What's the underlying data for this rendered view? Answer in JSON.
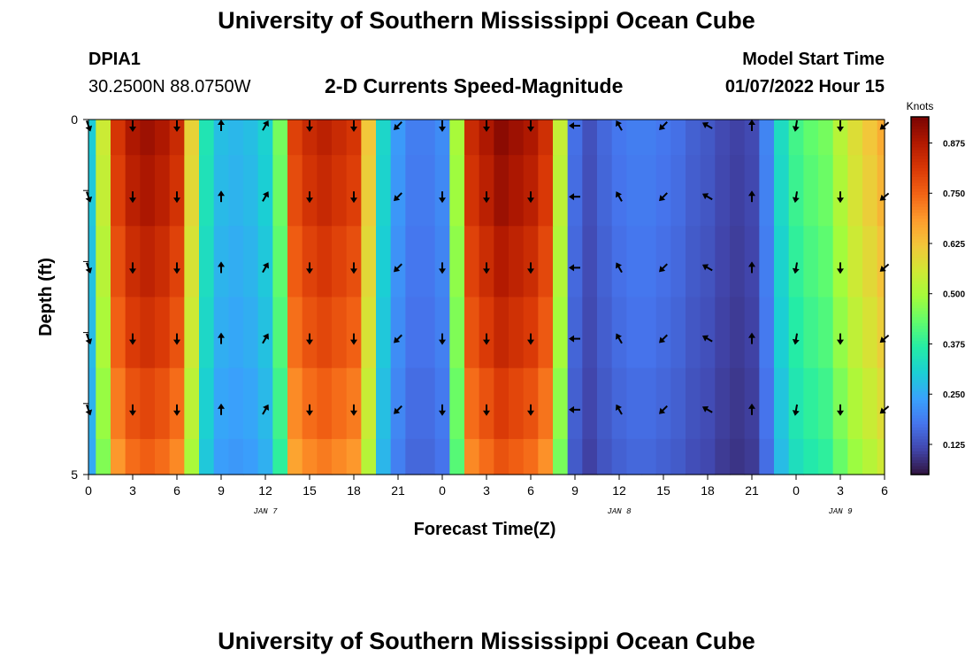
{
  "page": {
    "title": "University of Southern Mississippi Ocean Cube",
    "station_id": "DPIA1",
    "station_coords": "30.2500N  88.0750W",
    "plot_title": "2-D Currents Speed-Magnitude",
    "model_start_label": "Model Start Time",
    "model_start_value": "01/07/2022 Hour 15",
    "bottom_title": "University of Southern Mississippi Ocean Cube"
  },
  "chart_data": {
    "type": "heatmap",
    "title": "2-D Currents Speed-Magnitude",
    "xlabel": "Forecast Time(Z)",
    "ylabel": "Depth (ft)",
    "x_tick_labels": [
      "0",
      "3",
      "6",
      "9",
      "12",
      "15",
      "18",
      "21",
      "0",
      "3",
      "6",
      "9",
      "12",
      "15",
      "18",
      "21",
      "0",
      "3",
      "6"
    ],
    "x_range_hours": [
      0,
      54
    ],
    "date_labels": [
      {
        "text": "JAN 7",
        "hour": 12
      },
      {
        "text": "JAN 8",
        "hour": 36
      },
      {
        "text": "JAN 9",
        "hour": 51
      }
    ],
    "y_tick_labels": [
      "0",
      "5"
    ],
    "ylim": [
      0,
      5
    ],
    "depth_levels_ft": [
      0,
      1,
      2,
      3,
      4,
      5
    ],
    "colorbar": {
      "units": "Knots",
      "vmin": 0.05,
      "vmax": 0.94,
      "tick_values": [
        "0.125",
        "0.250",
        "0.375",
        "0.500",
        "0.625",
        "0.750",
        "0.875"
      ],
      "colors": [
        "#30123b",
        "#4145ab",
        "#4675ed",
        "#39a2fc",
        "#1bcfd4",
        "#24eca6",
        "#61fc6c",
        "#a4fc3b",
        "#d1e834",
        "#f3c63a",
        "#fe9b2d",
        "#f36315",
        "#d93806",
        "#b11901",
        "#7a0403"
      ]
    },
    "time_hours": [
      0,
      1,
      2,
      3,
      4,
      5,
      6,
      7,
      8,
      9,
      10,
      11,
      12,
      13,
      14,
      15,
      16,
      17,
      18,
      19,
      20,
      21,
      22,
      23,
      24,
      25,
      26,
      27,
      28,
      29,
      30,
      31,
      32,
      33,
      34,
      35,
      36,
      37,
      38,
      39,
      40,
      41,
      42,
      43,
      44,
      45,
      46,
      47,
      48,
      49,
      50,
      51,
      52,
      53,
      54
    ],
    "surface_speed_knots": [
      0.3,
      0.55,
      0.82,
      0.88,
      0.9,
      0.88,
      0.84,
      0.6,
      0.35,
      0.28,
      0.27,
      0.28,
      0.31,
      0.45,
      0.8,
      0.84,
      0.86,
      0.84,
      0.82,
      0.62,
      0.32,
      0.23,
      0.19,
      0.19,
      0.21,
      0.5,
      0.84,
      0.88,
      0.92,
      0.9,
      0.88,
      0.83,
      0.54,
      0.17,
      0.13,
      0.16,
      0.18,
      0.19,
      0.19,
      0.18,
      0.17,
      0.15,
      0.14,
      0.12,
      0.11,
      0.12,
      0.2,
      0.33,
      0.4,
      0.43,
      0.45,
      0.52,
      0.58,
      0.62,
      0.66
    ],
    "depth_factors": [
      1.0,
      0.98,
      0.95,
      0.92,
      0.88,
      0.84
    ],
    "current_arrows": [
      {
        "hour": 0,
        "dir_deg": 160
      },
      {
        "hour": 3,
        "dir_deg": 180
      },
      {
        "hour": 6,
        "dir_deg": 180
      },
      {
        "hour": 9,
        "dir_deg": 0
      },
      {
        "hour": 12,
        "dir_deg": 30
      },
      {
        "hour": 15,
        "dir_deg": 180
      },
      {
        "hour": 18,
        "dir_deg": 180
      },
      {
        "hour": 21,
        "dir_deg": 225
      },
      {
        "hour": 24,
        "dir_deg": 180
      },
      {
        "hour": 27,
        "dir_deg": 180
      },
      {
        "hour": 30,
        "dir_deg": 180
      },
      {
        "hour": 33,
        "dir_deg": 270
      },
      {
        "hour": 36,
        "dir_deg": 330
      },
      {
        "hour": 39,
        "dir_deg": 225
      },
      {
        "hour": 42,
        "dir_deg": 300
      },
      {
        "hour": 45,
        "dir_deg": 0
      },
      {
        "hour": 48,
        "dir_deg": 190
      },
      {
        "hour": 51,
        "dir_deg": 180
      },
      {
        "hour": 54,
        "dir_deg": 230
      }
    ]
  }
}
